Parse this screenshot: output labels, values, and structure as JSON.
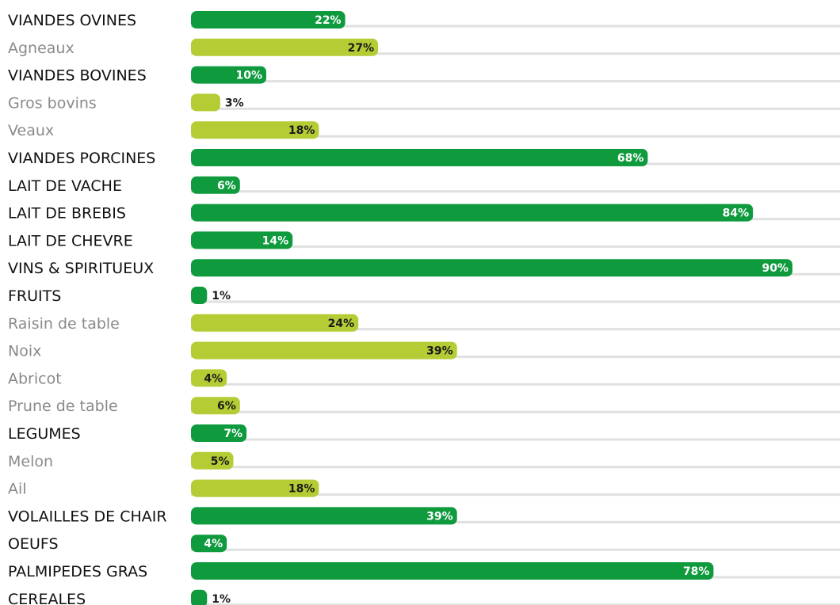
{
  "chart_data": {
    "type": "bar",
    "orientation": "horizontal",
    "xlim": [
      0,
      100
    ],
    "unit": "%",
    "grid": false,
    "legend": "none",
    "colors": {
      "category": "#0f9a3e",
      "subcategory": "#b5cc34",
      "track": "#e0e0e0",
      "category_label": "#111111",
      "subcategory_label": "#8a8a8a",
      "value_on_category": "#ffffff",
      "value_on_subcategory": "#1a1a1a"
    },
    "rows": [
      {
        "label": "VIANDES OVINES",
        "value": 22,
        "value_label": "22%",
        "level": "category"
      },
      {
        "label": "Agneaux",
        "value": 27,
        "value_label": "27%",
        "level": "subcategory"
      },
      {
        "label": "VIANDES BOVINES",
        "value": 10,
        "value_label": "10%",
        "level": "category"
      },
      {
        "label": "Gros bovins",
        "value": 3,
        "value_label": "3%",
        "level": "subcategory"
      },
      {
        "label": "Veaux",
        "value": 18,
        "value_label": "18%",
        "level": "subcategory"
      },
      {
        "label": "VIANDES PORCINES",
        "value": 68,
        "value_label": "68%",
        "level": "category"
      },
      {
        "label": "LAIT DE VACHE",
        "value": 6,
        "value_label": "6%",
        "level": "category"
      },
      {
        "label": "LAIT DE BREBIS",
        "value": 84,
        "value_label": "84%",
        "level": "category"
      },
      {
        "label": "LAIT DE CHEVRE",
        "value": 14,
        "value_label": "14%",
        "level": "category"
      },
      {
        "label": "VINS & SPIRITUEUX",
        "value": 90,
        "value_label": "90%",
        "level": "category"
      },
      {
        "label": "FRUITS",
        "value": 1,
        "value_label": "1%",
        "level": "category"
      },
      {
        "label": "Raisin de table",
        "value": 24,
        "value_label": "24%",
        "level": "subcategory"
      },
      {
        "label": "Noix",
        "value": 39,
        "value_label": "39%",
        "level": "subcategory"
      },
      {
        "label": "Abricot",
        "value": 4,
        "value_label": "4%",
        "level": "subcategory"
      },
      {
        "label": "Prune de table",
        "value": 6,
        "value_label": "6%",
        "level": "subcategory"
      },
      {
        "label": "LEGUMES",
        "value": 7,
        "value_label": "7%",
        "level": "category"
      },
      {
        "label": "Melon",
        "value": 5,
        "value_label": "5%",
        "level": "subcategory"
      },
      {
        "label": "Ail",
        "value": 18,
        "value_label": "18%",
        "level": "subcategory"
      },
      {
        "label": "VOLAILLES DE CHAIR",
        "value": 39,
        "value_label": "39%",
        "level": "category"
      },
      {
        "label": "OEUFS",
        "value": 4,
        "value_label": "4%",
        "level": "category"
      },
      {
        "label": "PALMIPEDES GRAS",
        "value": 78,
        "value_label": "78%",
        "level": "category"
      },
      {
        "label": "CEREALES",
        "value": 1,
        "value_label": "1%",
        "level": "category"
      }
    ]
  }
}
